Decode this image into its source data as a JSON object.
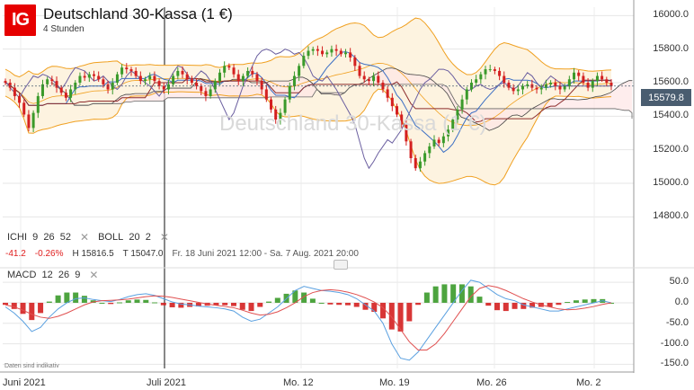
{
  "header": {
    "logo": "IG",
    "title": "Deutschland 30-Kassa (1 €)",
    "subtitle": "4 Stunden",
    "watermark": "Deutschland 30-Kassa (1 €)"
  },
  "price": {
    "last": "15579.8",
    "tag_color": "#4a5d70"
  },
  "indicators": {
    "ichi": {
      "label": "ICHI",
      "p1": "9",
      "p2": "26",
      "p3": "52"
    },
    "boll": {
      "label": "BOLL",
      "p1": "20",
      "p2": "2"
    },
    "macd": {
      "label": "MACD",
      "p1": "12",
      "p2": "26",
      "p3": "9"
    },
    "close_icon": "close-icon"
  },
  "stats": {
    "change": "-41.2",
    "change_pct": "-0.26%",
    "high": "H 15816.5",
    "low": "T 15047.0",
    "range": "Fr. 18 Juni 2021 12:00 - Sa. 7 Aug. 2021 20:00"
  },
  "footer": {
    "note": "Daten sind indikativ"
  },
  "colors": {
    "up": "#3a9a2a",
    "down": "#d42020",
    "boll": "#f0a020",
    "boll_fill": "#fdf3e0",
    "cloud": "#fde6e6",
    "tenkan": "#3b6fc4",
    "kijun": "#8b2b2b",
    "chikou": "#6b5fa0",
    "span": "#444444",
    "macd": "#5aa0e0",
    "signal": "#e05050"
  },
  "chart_data": [
    {
      "type": "candlestick",
      "title": "Deutschland 30-Kassa (1 €)",
      "timeframe": "4 Stunden",
      "ylim": [
        14700,
        16050
      ],
      "yticks": [
        "16000.0",
        "15800.0",
        "15600.0",
        "15400.0",
        "15200.0",
        "15000.0",
        "14800.0"
      ],
      "ytick_values": [
        16000,
        15800,
        15600,
        15400,
        15200,
        15000,
        14800
      ],
      "x_labels": [
        "Juni 2021",
        "Juli 2021",
        "Mo. 12",
        "Mo. 19",
        "Mo. 26",
        "Mo. 2"
      ],
      "close": [
        15600,
        15570,
        15520,
        15480,
        15410,
        15330,
        15420,
        15520,
        15590,
        15620,
        15610,
        15570,
        15540,
        15510,
        15560,
        15600,
        15640,
        15630,
        15650,
        15640,
        15620,
        15590,
        15560,
        15600,
        15650,
        15690,
        15680,
        15670,
        15640,
        15610,
        15620,
        15640,
        15610,
        15580,
        15560,
        15590,
        15640,
        15670,
        15650,
        15620,
        15600,
        15580,
        15550,
        15520,
        15560,
        15610,
        15660,
        15700,
        15690,
        15650,
        15610,
        15640,
        15670,
        15650,
        15610,
        15560,
        15500,
        15440,
        15380,
        15420,
        15500,
        15580,
        15640,
        15700,
        15760,
        15790,
        15800,
        15790,
        15770,
        15780,
        15800,
        15790,
        15770,
        15780,
        15750,
        15700,
        15640,
        15620,
        15610,
        15640,
        15600,
        15560,
        15510,
        15460,
        15410,
        15350,
        15250,
        15150,
        15090,
        15130,
        15180,
        15220,
        15260,
        15240,
        15280,
        15320,
        15380,
        15440,
        15500,
        15560,
        15600,
        15620,
        15650,
        15680,
        15680,
        15670,
        15640,
        15600,
        15570,
        15550,
        15560,
        15580,
        15590,
        15570,
        15560,
        15570,
        15590,
        15600,
        15580,
        15560,
        15580,
        15620,
        15660,
        15640,
        15600,
        15570,
        15610,
        15640,
        15620,
        15600,
        15580
      ],
      "bollinger": {
        "period": "20",
        "stddev": "2"
      },
      "ichimoku": {
        "tenkan": "9",
        "kijun": "26",
        "senkou": "52"
      },
      "stats": {
        "change": "-41.2",
        "change_pct": "-0.26%",
        "high": 15816.5,
        "low": 15047.0
      }
    },
    {
      "type": "bar",
      "title": "MACD 12 26 9",
      "ylim": [
        -160,
        70
      ],
      "yticks": [
        "50.0",
        "0.0",
        "-50.0",
        "-100.0",
        "-150.0"
      ],
      "ytick_values": [
        50,
        0,
        -50,
        -100,
        -150
      ],
      "series": [
        {
          "name": "MACD",
          "values": [
            -10,
            -25,
            -45,
            -70,
            -60,
            -35,
            -15,
            0,
            10,
            12,
            8,
            5,
            3,
            8,
            15,
            20,
            22,
            18,
            10,
            2,
            -3,
            -5,
            -8,
            -10,
            -12,
            -15,
            -20,
            -35,
            -45,
            -40,
            -25,
            -10,
            10,
            30,
            40,
            35,
            30,
            28,
            25,
            20,
            10,
            -5,
            -20,
            -50,
            -100,
            -135,
            -140,
            -120,
            -90,
            -60,
            -30,
            0,
            30,
            55,
            50,
            35,
            20,
            10,
            5,
            -5,
            -10,
            -15,
            -20,
            -20,
            -15,
            -10,
            -5,
            0,
            5,
            0
          ]
        },
        {
          "name": "Signal",
          "values": [
            -5,
            -10,
            -18,
            -28,
            -35,
            -38,
            -33,
            -25,
            -15,
            -5,
            2,
            5,
            6,
            7,
            9,
            12,
            15,
            17,
            16,
            13,
            9,
            5,
            1,
            -3,
            -6,
            -9,
            -12,
            -18,
            -25,
            -30,
            -28,
            -22,
            -12,
            0,
            15,
            25,
            30,
            32,
            30,
            26,
            20,
            12,
            2,
            -12,
            -35,
            -65,
            -95,
            -115,
            -115,
            -100,
            -75,
            -45,
            -15,
            15,
            35,
            42,
            38,
            30,
            20,
            10,
            2,
            -5,
            -10,
            -15,
            -17,
            -16,
            -13,
            -9,
            -4,
            0
          ]
        }
      ]
    }
  ]
}
